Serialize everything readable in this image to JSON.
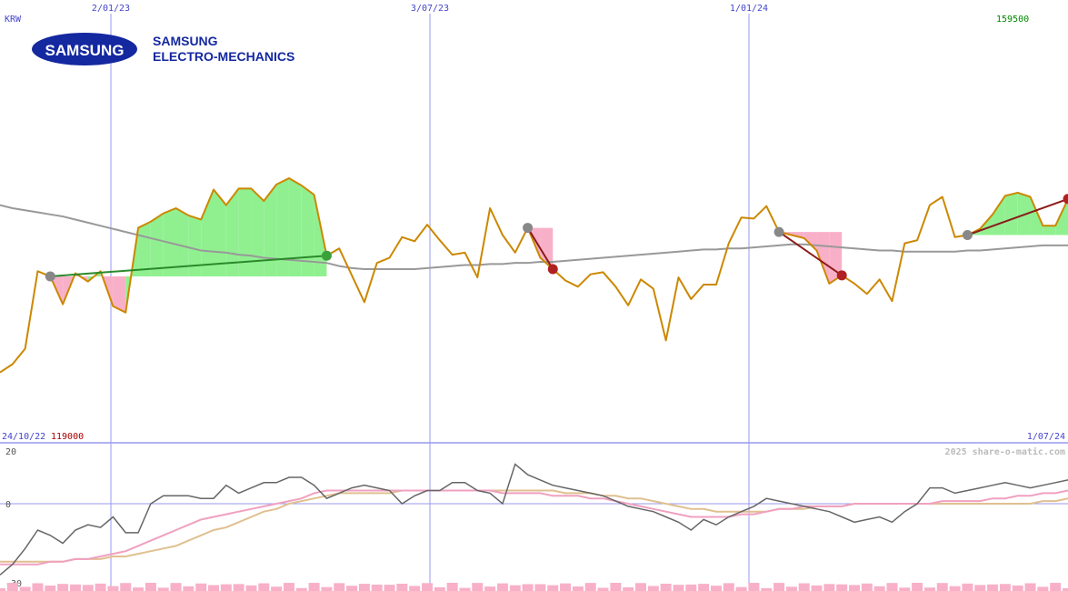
{
  "currency": "KRW",
  "price_high_label": "159500",
  "price_low_label": "119000",
  "start_date_label": "24/10/22",
  "end_date_label": "1/07/24",
  "watermark": "2025 share-o-matic.com",
  "company": {
    "logo_text": "SAMSUNG",
    "name_line1": "SAMSUNG",
    "name_line2": "ELECTRO-MECHANICS"
  },
  "colors": {
    "price_line": "#cc8800",
    "long_ma": "#999999",
    "gain_fill": "#90f090",
    "loss_fill": "#f8b0c8",
    "gain_trade": "#2a8a2a",
    "loss_trade": "#8b1a1a",
    "grid": "#9999ee",
    "oscillator": "#666666",
    "osc_fast": "#f0a0c0",
    "osc_slow": "#e0c090",
    "volume": "#f8b0c8",
    "logo_blue": "#1428a0"
  },
  "chart_data": [
    {
      "type": "line",
      "panel": "price",
      "x_tick_labels": [
        "2/01/23",
        "3/07/23",
        "1/01/24"
      ],
      "ylim": [
        119000,
        159500
      ],
      "series": [
        {
          "role": "price",
          "values": [
            125200,
            126000,
            127500,
            135000,
            134500,
            131800,
            134800,
            134000,
            135000,
            131600,
            131000,
            139200,
            139800,
            140600,
            141100,
            140400,
            140000,
            142900,
            141400,
            143000,
            143000,
            141800,
            143400,
            144000,
            143300,
            142400,
            136500,
            137200,
            134600,
            132000,
            135800,
            136300,
            138300,
            137900,
            139500,
            138000,
            136600,
            136800,
            134400,
            141100,
            138500,
            136800,
            139200,
            136300,
            135200,
            134100,
            133500,
            134700,
            134900,
            133500,
            131700,
            134200,
            133300,
            128300,
            134400,
            132300,
            133700,
            133700,
            137700,
            140200,
            140100,
            141300,
            138800,
            138500,
            138200,
            137000,
            133800,
            134600,
            133800,
            132800,
            134200,
            132100,
            137700,
            138000,
            141400,
            142200,
            138300,
            138500,
            139100,
            140500,
            142300,
            142600,
            142200,
            139400,
            139400,
            142000
          ]
        },
        {
          "role": "long moving average",
          "values": [
            141400,
            141100,
            140900,
            140700,
            140500,
            140300,
            140000,
            139700,
            139400,
            139100,
            138800,
            138500,
            138200,
            137900,
            137600,
            137300,
            137000,
            136900,
            136800,
            136600,
            136500,
            136300,
            136200,
            136100,
            136000,
            135900,
            135800,
            135500,
            135300,
            135200,
            135200,
            135200,
            135200,
            135200,
            135300,
            135400,
            135500,
            135600,
            135600,
            135700,
            135700,
            135800,
            135800,
            135900,
            135900,
            136000,
            136100,
            136200,
            136300,
            136400,
            136500,
            136600,
            136700,
            136800,
            136900,
            137000,
            137100,
            137100,
            137200,
            137200,
            137300,
            137400,
            137500,
            137600,
            137600,
            137500,
            137400,
            137300,
            137200,
            137100,
            137000,
            137000,
            136900,
            136900,
            136900,
            136900,
            136900,
            137000,
            137000,
            137100,
            137200,
            137300,
            137400,
            137500,
            137500,
            137500
          ]
        }
      ],
      "trades": [
        {
          "entry_index": 4,
          "exit_index": 26,
          "outcome": "gain"
        },
        {
          "entry_index": 42,
          "exit_index": 44,
          "outcome": "loss"
        },
        {
          "entry_index": 62,
          "exit_index": 67,
          "outcome": "loss"
        },
        {
          "entry_index": 77,
          "exit_index": 85,
          "outcome": "loss"
        }
      ],
      "extra_marker_index": 87
    },
    {
      "type": "line",
      "panel": "oscillator",
      "ylim": [
        -30,
        20
      ],
      "y_tick_labels": [
        "20",
        "0",
        "-30"
      ],
      "series": [
        {
          "role": "oscillator",
          "values": [
            -27,
            -23,
            -17,
            -10,
            -12,
            -15,
            -10,
            -8,
            -9,
            -5,
            -11,
            -11,
            0,
            3,
            3,
            3,
            2,
            2,
            7,
            4,
            6,
            8,
            8,
            10,
            10,
            7,
            2,
            4,
            6,
            7,
            6,
            5,
            0,
            3,
            5,
            5,
            8,
            8,
            5,
            4,
            0,
            15,
            11,
            9,
            7,
            6,
            5,
            4,
            3,
            1,
            -1,
            -2,
            -3,
            -5,
            -7,
            -10,
            -6,
            -8,
            -5,
            -3,
            -1,
            2,
            1,
            0,
            -1,
            -2,
            -3,
            -5,
            -7,
            -6,
            -5,
            -7,
            -3,
            0,
            6,
            6,
            4,
            5,
            6,
            7,
            8,
            7,
            6,
            7,
            8,
            9,
            10
          ]
        },
        {
          "role": "fast average",
          "values": [
            -23,
            -23,
            -23,
            -23,
            -22,
            -22,
            -21,
            -21,
            -20,
            -19,
            -18,
            -16,
            -14,
            -12,
            -10,
            -8,
            -6,
            -5,
            -4,
            -3,
            -2,
            -1,
            0,
            1,
            2,
            4,
            5,
            5,
            5,
            5,
            5,
            5,
            5,
            5,
            5,
            5,
            5,
            5,
            5,
            5,
            4,
            4,
            4,
            4,
            3,
            3,
            3,
            2,
            2,
            1,
            0,
            -1,
            -2,
            -3,
            -4,
            -5,
            -5,
            -5,
            -5,
            -4,
            -4,
            -3,
            -2,
            -2,
            -1,
            -1,
            -1,
            -1,
            0,
            0,
            0,
            0,
            0,
            0,
            0,
            1,
            1,
            1,
            1,
            2,
            2,
            3,
            3,
            4,
            4,
            5,
            5
          ]
        },
        {
          "role": "slow average",
          "values": [
            -22,
            -22,
            -22,
            -22,
            -22,
            -22,
            -21,
            -21,
            -21,
            -20,
            -20,
            -19,
            -18,
            -17,
            -16,
            -14,
            -12,
            -10,
            -9,
            -7,
            -5,
            -3,
            -2,
            0,
            1,
            2,
            3,
            4,
            4,
            4,
            4,
            4,
            5,
            5,
            5,
            5,
            5,
            5,
            5,
            5,
            5,
            5,
            5,
            5,
            5,
            4,
            4,
            4,
            3,
            3,
            2,
            2,
            1,
            0,
            -1,
            -2,
            -2,
            -3,
            -3,
            -3,
            -3,
            -3,
            -2,
            -2,
            -2,
            -1,
            -1,
            -1,
            0,
            0,
            0,
            0,
            0,
            0,
            0,
            0,
            0,
            0,
            0,
            0,
            0,
            0,
            0,
            1,
            1,
            2,
            3
          ]
        }
      ]
    }
  ]
}
